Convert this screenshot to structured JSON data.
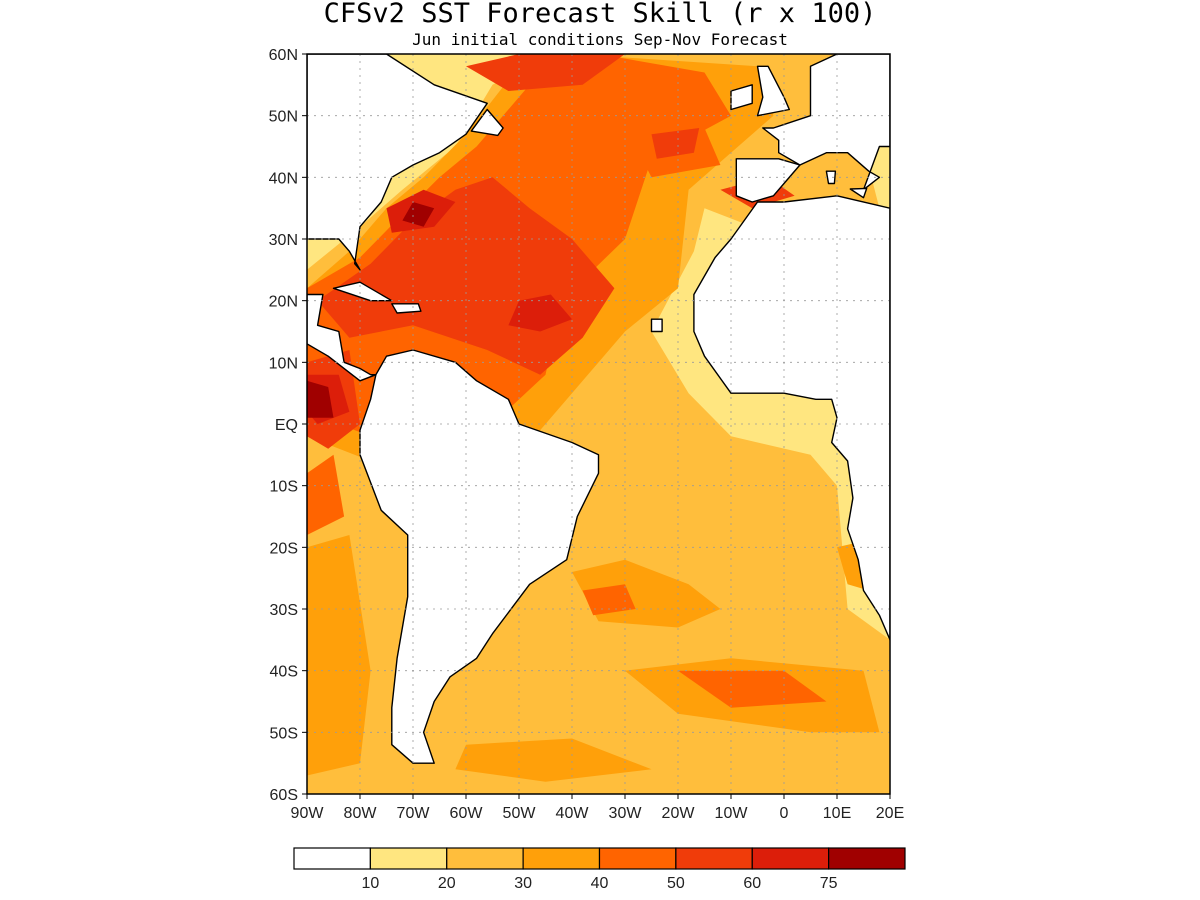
{
  "title": "CFSv2 SST Forecast Skill (r x 100)",
  "subtitle": "Jun initial conditions  Sep-Nov Forecast",
  "map": {
    "lon_range": [
      -90,
      20
    ],
    "lat_range": [
      -60,
      60
    ],
    "lat_ticks": [
      {
        "value": 60,
        "label": "60N"
      },
      {
        "value": 50,
        "label": "50N"
      },
      {
        "value": 40,
        "label": "40N"
      },
      {
        "value": 30,
        "label": "30N"
      },
      {
        "value": 20,
        "label": "20N"
      },
      {
        "value": 10,
        "label": "10N"
      },
      {
        "value": 0,
        "label": "EQ"
      },
      {
        "value": -10,
        "label": "10S"
      },
      {
        "value": -20,
        "label": "20S"
      },
      {
        "value": -30,
        "label": "30S"
      },
      {
        "value": -40,
        "label": "40S"
      },
      {
        "value": -50,
        "label": "50S"
      },
      {
        "value": -60,
        "label": "60S"
      }
    ],
    "lon_ticks": [
      {
        "value": -90,
        "label": "90W"
      },
      {
        "value": -80,
        "label": "80W"
      },
      {
        "value": -70,
        "label": "70W"
      },
      {
        "value": -60,
        "label": "60W"
      },
      {
        "value": -50,
        "label": "50W"
      },
      {
        "value": -40,
        "label": "40W"
      },
      {
        "value": -30,
        "label": "30W"
      },
      {
        "value": -20,
        "label": "20W"
      },
      {
        "value": -10,
        "label": "10W"
      },
      {
        "value": 0,
        "label": "0"
      },
      {
        "value": 10,
        "label": "10E"
      },
      {
        "value": 20,
        "label": "20E"
      }
    ],
    "grid": true
  },
  "colorbar": {
    "bins": [
      {
        "color": "#ffffff",
        "label": "10"
      },
      {
        "color": "#ffe680",
        "label": "20"
      },
      {
        "color": "#ffbe3c",
        "label": "30"
      },
      {
        "color": "#ffa00a",
        "label": "40"
      },
      {
        "color": "#ff6400",
        "label": "50"
      },
      {
        "color": "#f03c0a",
        "label": "60"
      },
      {
        "color": "#dc1e0a",
        "label": "75"
      },
      {
        "color": "#a00000",
        "label": ""
      }
    ]
  },
  "skill_regions": [
    {
      "level": 1,
      "ring": [
        [
          -90,
          -60
        ],
        [
          20,
          -60
        ],
        [
          20,
          60
        ],
        [
          -90,
          60
        ]
      ]
    },
    {
      "level": 2,
      "ring": [
        [
          -90,
          25
        ],
        [
          -80,
          32
        ],
        [
          -72,
          38
        ],
        [
          -62,
          45
        ],
        [
          -55,
          55
        ],
        [
          -45,
          60
        ],
        [
          10,
          60
        ],
        [
          15,
          45
        ],
        [
          18,
          35
        ],
        [
          10,
          33
        ],
        [
          0,
          30
        ],
        [
          -15,
          35
        ],
        [
          -17,
          28
        ],
        [
          -25,
          15
        ],
        [
          -18,
          5
        ],
        [
          -10,
          -2
        ],
        [
          5,
          -5
        ],
        [
          10,
          -10
        ],
        [
          12,
          -30
        ],
        [
          20,
          -35
        ],
        [
          20,
          -60
        ],
        [
          -90,
          -60
        ]
      ]
    },
    {
      "level": 3,
      "ring": [
        [
          -90,
          22
        ],
        [
          -82,
          28
        ],
        [
          -75,
          35
        ],
        [
          -68,
          40
        ],
        [
          -60,
          47
        ],
        [
          -50,
          58
        ],
        [
          -40,
          60
        ],
        [
          -5,
          58
        ],
        [
          -2,
          50
        ],
        [
          -18,
          38
        ],
        [
          -20,
          22
        ],
        [
          -30,
          15
        ],
        [
          -40,
          5
        ],
        [
          -50,
          -5
        ],
        [
          -62,
          -10
        ],
        [
          -78,
          -6
        ],
        [
          -90,
          -2
        ]
      ]
    },
    {
      "level": 3,
      "ring": [
        [
          -40,
          -24
        ],
        [
          -30,
          -22
        ],
        [
          -18,
          -26
        ],
        [
          -12,
          -30
        ],
        [
          -20,
          -33
        ],
        [
          -35,
          -32
        ]
      ]
    },
    {
      "level": 3,
      "ring": [
        [
          -30,
          -40
        ],
        [
          -10,
          -38
        ],
        [
          15,
          -40
        ],
        [
          18,
          -50
        ],
        [
          5,
          -50
        ],
        [
          -20,
          -47
        ]
      ]
    },
    {
      "level": 3,
      "ring": [
        [
          -60,
          -52
        ],
        [
          -40,
          -51
        ],
        [
          -25,
          -56
        ],
        [
          -45,
          -58
        ],
        [
          -62,
          -56
        ]
      ]
    },
    {
      "level": 3,
      "ring": [
        [
          -90,
          -20
        ],
        [
          -82,
          -18
        ],
        [
          -78,
          -40
        ],
        [
          -80,
          -55
        ],
        [
          -90,
          -57
        ]
      ]
    },
    {
      "level": 3,
      "ring": [
        [
          10,
          -20
        ],
        [
          20,
          -18
        ],
        [
          20,
          -28
        ],
        [
          12,
          -26
        ]
      ]
    },
    {
      "level": 4,
      "ring": [
        [
          -90,
          22
        ],
        [
          -80,
          27
        ],
        [
          -72,
          34
        ],
        [
          -65,
          40
        ],
        [
          -58,
          45
        ],
        [
          -48,
          55
        ],
        [
          -35,
          60
        ],
        [
          -15,
          57
        ],
        [
          -10,
          50
        ],
        [
          -25,
          43
        ],
        [
          -30,
          30
        ],
        [
          -42,
          20
        ],
        [
          -45,
          8
        ],
        [
          -55,
          0
        ],
        [
          -78,
          -2
        ],
        [
          -90,
          2
        ]
      ]
    },
    {
      "level": 4,
      "ring": [
        [
          -28,
          45
        ],
        [
          -15,
          48
        ],
        [
          -12,
          42
        ],
        [
          -25,
          40
        ]
      ]
    },
    {
      "level": 4,
      "ring": [
        [
          -38,
          -27
        ],
        [
          -30,
          -26
        ],
        [
          -28,
          -30
        ],
        [
          -36,
          -31
        ]
      ]
    },
    {
      "level": 4,
      "ring": [
        [
          -20,
          -40
        ],
        [
          0,
          -40
        ],
        [
          8,
          -45
        ],
        [
          -10,
          -46
        ]
      ]
    },
    {
      "level": 4,
      "ring": [
        [
          -90,
          -8
        ],
        [
          -85,
          -5
        ],
        [
          -83,
          -15
        ],
        [
          -90,
          -18
        ]
      ]
    },
    {
      "level": 5,
      "ring": [
        [
          -88,
          20
        ],
        [
          -78,
          26
        ],
        [
          -70,
          33
        ],
        [
          -62,
          38
        ],
        [
          -55,
          40
        ],
        [
          -48,
          35
        ],
        [
          -40,
          30
        ],
        [
          -32,
          22
        ],
        [
          -38,
          14
        ],
        [
          -46,
          8
        ],
        [
          -56,
          12
        ],
        [
          -70,
          16
        ],
        [
          -82,
          14
        ]
      ]
    },
    {
      "level": 5,
      "ring": [
        [
          -60,
          58
        ],
        [
          -50,
          60
        ],
        [
          -30,
          60
        ],
        [
          -38,
          55
        ],
        [
          -52,
          54
        ]
      ]
    },
    {
      "level": 5,
      "ring": [
        [
          -25,
          47
        ],
        [
          -16,
          48
        ],
        [
          -17,
          44
        ],
        [
          -24,
          43
        ]
      ]
    },
    {
      "level": 5,
      "ring": [
        [
          -12,
          38
        ],
        [
          -3,
          40
        ],
        [
          2,
          37
        ],
        [
          -6,
          35
        ]
      ]
    },
    {
      "level": 5,
      "ring": [
        [
          -90,
          10
        ],
        [
          -82,
          12
        ],
        [
          -80,
          0
        ],
        [
          -86,
          -4
        ],
        [
          -90,
          -2
        ]
      ]
    },
    {
      "level": 6,
      "ring": [
        [
          -75,
          35
        ],
        [
          -68,
          38
        ],
        [
          -62,
          36
        ],
        [
          -66,
          32
        ],
        [
          -74,
          31
        ]
      ]
    },
    {
      "level": 6,
      "ring": [
        [
          -50,
          20
        ],
        [
          -44,
          21
        ],
        [
          -40,
          17
        ],
        [
          -46,
          15
        ],
        [
          -52,
          16
        ]
      ]
    },
    {
      "level": 6,
      "ring": [
        [
          -85,
          60
        ],
        [
          -80,
          60
        ],
        [
          -78,
          56
        ],
        [
          -84,
          55
        ]
      ]
    },
    {
      "level": 6,
      "ring": [
        [
          -90,
          8
        ],
        [
          -84,
          8
        ],
        [
          -82,
          2
        ],
        [
          -88,
          0
        ],
        [
          -90,
          2
        ]
      ]
    },
    {
      "level": 7,
      "ring": [
        [
          -90,
          7
        ],
        [
          -86,
          6
        ],
        [
          -85,
          1
        ],
        [
          -90,
          1
        ]
      ]
    },
    {
      "level": 7,
      "ring": [
        [
          -70,
          36
        ],
        [
          -66,
          35
        ],
        [
          -68,
          32
        ],
        [
          -72,
          33
        ]
      ]
    }
  ],
  "land": [
    {
      "name": "north-america",
      "ring": [
        [
          -90,
          60
        ],
        [
          -75,
          60
        ],
        [
          -66,
          55
        ],
        [
          -56,
          52
        ],
        [
          -60,
          47
        ],
        [
          -65,
          44
        ],
        [
          -70,
          42
        ],
        [
          -74,
          40
        ],
        [
          -76,
          36
        ],
        [
          -80,
          32
        ],
        [
          -81,
          26
        ],
        [
          -80,
          25
        ],
        [
          -82,
          28
        ],
        [
          -84,
          30
        ],
        [
          -89,
          30
        ],
        [
          -90,
          30
        ]
      ]
    },
    {
      "name": "central-america",
      "ring": [
        [
          -90,
          21
        ],
        [
          -87,
          21
        ],
        [
          -88,
          16
        ],
        [
          -84,
          15
        ],
        [
          -83,
          10
        ],
        [
          -80,
          9
        ],
        [
          -78,
          8
        ],
        [
          -77,
          8
        ],
        [
          -80,
          7
        ],
        [
          -86,
          11
        ],
        [
          -90,
          13
        ]
      ]
    },
    {
      "name": "south-america",
      "ring": [
        [
          -80,
          -1
        ],
        [
          -80,
          -5
        ],
        [
          -76,
          -14
        ],
        [
          -71,
          -18
        ],
        [
          -71,
          -28
        ],
        [
          -73,
          -38
        ],
        [
          -74,
          -46
        ],
        [
          -74,
          -52
        ],
        [
          -70,
          -55
        ],
        [
          -66,
          -55
        ],
        [
          -68,
          -50
        ],
        [
          -66,
          -45
        ],
        [
          -63,
          -41
        ],
        [
          -58,
          -38
        ],
        [
          -55,
          -34
        ],
        [
          -48,
          -26
        ],
        [
          -41,
          -22
        ],
        [
          -39,
          -15
        ],
        [
          -35,
          -8
        ],
        [
          -35,
          -5
        ],
        [
          -40,
          -3
        ],
        [
          -50,
          0
        ],
        [
          -52,
          4
        ],
        [
          -58,
          7
        ],
        [
          -62,
          10
        ],
        [
          -70,
          12
        ],
        [
          -75,
          11
        ],
        [
          -77,
          8
        ],
        [
          -78,
          4
        ]
      ]
    },
    {
      "name": "africa",
      "ring": [
        [
          20,
          35
        ],
        [
          10,
          37
        ],
        [
          0,
          36
        ],
        [
          -5,
          36
        ],
        [
          -10,
          30
        ],
        [
          -13,
          27
        ],
        [
          -17,
          21
        ],
        [
          -17,
          15
        ],
        [
          -15,
          11
        ],
        [
          -10,
          5
        ],
        [
          -5,
          5
        ],
        [
          0,
          5
        ],
        [
          6,
          4
        ],
        [
          9,
          4
        ],
        [
          10,
          1
        ],
        [
          9,
          -3
        ],
        [
          12,
          -6
        ],
        [
          13,
          -12
        ],
        [
          12,
          -17
        ],
        [
          14,
          -22
        ],
        [
          15,
          -27
        ],
        [
          18,
          -31
        ],
        [
          20,
          -35
        ]
      ]
    },
    {
      "name": "iberia",
      "ring": [
        [
          -9,
          43
        ],
        [
          -1,
          43
        ],
        [
          3,
          42
        ],
        [
          0,
          39
        ],
        [
          -2,
          37
        ],
        [
          -6,
          36
        ],
        [
          -9,
          37
        ],
        [
          -9,
          40
        ]
      ]
    },
    {
      "name": "europe",
      "ring": [
        [
          3,
          42
        ],
        [
          8,
          44
        ],
        [
          12,
          44
        ],
        [
          16,
          41
        ],
        [
          18,
          40
        ],
        [
          15,
          38
        ],
        [
          18,
          45
        ],
        [
          20,
          45
        ],
        [
          20,
          60
        ],
        [
          10,
          60
        ],
        [
          5,
          58
        ],
        [
          5,
          50
        ],
        [
          -2,
          48
        ],
        [
          -4,
          48
        ],
        [
          -1,
          46
        ],
        [
          -1,
          44
        ]
      ]
    },
    {
      "name": "great-britain",
      "ring": [
        [
          -5,
          58
        ],
        [
          -3,
          58
        ],
        [
          0,
          53
        ],
        [
          1,
          51
        ],
        [
          -5,
          50
        ],
        [
          -4,
          53
        ]
      ]
    },
    {
      "name": "ireland",
      "ring": [
        [
          -10,
          54
        ],
        [
          -6,
          55
        ],
        [
          -6,
          52
        ],
        [
          -10,
          51
        ]
      ]
    },
    {
      "name": "cuba",
      "ring": [
        [
          -85,
          22
        ],
        [
          -80,
          23
        ],
        [
          -74,
          20
        ],
        [
          -78,
          20
        ]
      ]
    },
    {
      "name": "hispaniola",
      "ring": [
        [
          -74,
          19.5
        ],
        [
          -69,
          19.5
        ],
        [
          -68.5,
          18.3
        ],
        [
          -73,
          18
        ]
      ]
    },
    {
      "name": "newfoundland",
      "ring": [
        [
          -59,
          47.5
        ],
        [
          -56,
          51
        ],
        [
          -53,
          48
        ],
        [
          -54,
          46.8
        ]
      ]
    },
    {
      "name": "sardinia",
      "ring": [
        [
          8,
          41
        ],
        [
          9.7,
          41
        ],
        [
          9.5,
          39
        ],
        [
          8.4,
          39
        ]
      ]
    },
    {
      "name": "sicily",
      "ring": [
        [
          12.5,
          38.1
        ],
        [
          15.6,
          38.2
        ],
        [
          15,
          36.7
        ]
      ]
    },
    {
      "name": "cape-verde",
      "ring": [
        [
          -25,
          17
        ],
        [
          -23,
          17
        ],
        [
          -23,
          15
        ],
        [
          -25,
          15
        ]
      ]
    }
  ]
}
